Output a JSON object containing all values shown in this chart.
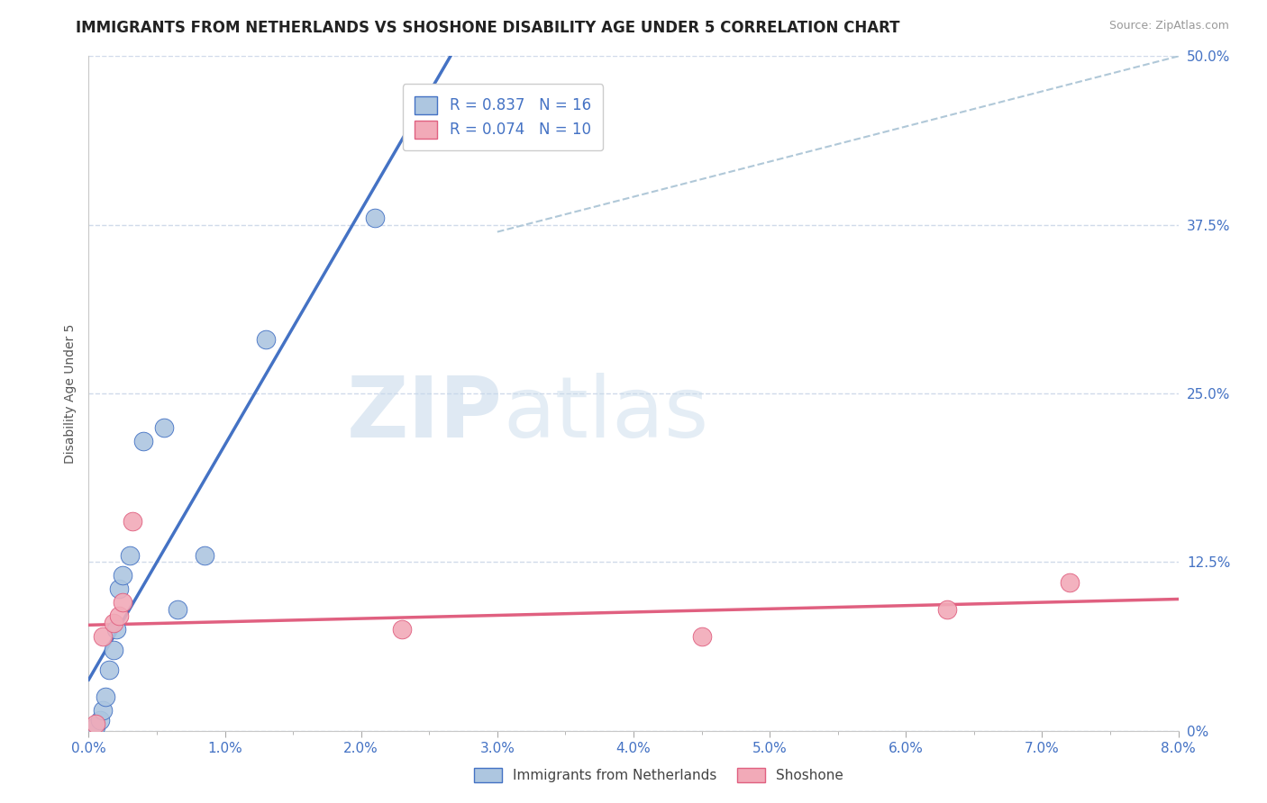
{
  "title": "IMMIGRANTS FROM NETHERLANDS VS SHOSHONE DISABILITY AGE UNDER 5 CORRELATION CHART",
  "source": "Source: ZipAtlas.com",
  "ylabel": "Disability Age Under 5",
  "x_tick_labels": [
    "0.0%",
    "",
    "1.0%",
    "",
    "2.0%",
    "",
    "3.0%",
    "",
    "4.0%",
    "",
    "5.0%",
    "",
    "6.0%",
    "",
    "7.0%",
    "",
    "8.0%"
  ],
  "x_tick_values": [
    0.0,
    0.5,
    1.0,
    1.5,
    2.0,
    2.5,
    3.0,
    3.5,
    4.0,
    4.5,
    5.0,
    5.5,
    6.0,
    6.5,
    7.0,
    7.5,
    8.0
  ],
  "x_tick_display_values": [
    0.0,
    1.0,
    2.0,
    3.0,
    4.0,
    5.0,
    6.0,
    7.0,
    8.0
  ],
  "x_tick_display_labels": [
    "0.0%",
    "1.0%",
    "2.0%",
    "3.0%",
    "4.0%",
    "5.0%",
    "6.0%",
    "7.0%",
    "8.0%"
  ],
  "y_tick_labels": [
    "0%",
    "12.5%",
    "25.0%",
    "37.5%",
    "50.0%"
  ],
  "y_tick_values": [
    0,
    12.5,
    25.0,
    37.5,
    50.0
  ],
  "xlim": [
    0.0,
    8.0
  ],
  "ylim": [
    0.0,
    50.0
  ],
  "netherlands_x": [
    0.05,
    0.08,
    0.1,
    0.12,
    0.15,
    0.18,
    0.2,
    0.22,
    0.25,
    0.3,
    0.4,
    0.55,
    0.65,
    0.85,
    1.3,
    2.1
  ],
  "netherlands_y": [
    0.3,
    0.8,
    1.5,
    2.5,
    4.5,
    6.0,
    7.5,
    10.5,
    11.5,
    13.0,
    21.5,
    22.5,
    9.0,
    13.0,
    29.0,
    38.0
  ],
  "shoshone_x": [
    0.05,
    0.1,
    0.18,
    0.22,
    0.25,
    0.32,
    2.3,
    4.5,
    6.3,
    7.2
  ],
  "shoshone_y": [
    0.5,
    7.0,
    8.0,
    8.5,
    9.5,
    15.5,
    7.5,
    7.0,
    9.0,
    11.0
  ],
  "netherlands_color": "#adc6e0",
  "shoshone_color": "#f2aab8",
  "netherlands_line_color": "#4472c4",
  "shoshone_line_color": "#e06080",
  "ref_line_color": "#b0c8d8",
  "background_color": "#ffffff",
  "grid_color": "#d0daea",
  "legend_R_netherlands": "R = 0.837",
  "legend_N_netherlands": "N = 16",
  "legend_R_shoshone": "R = 0.074",
  "legend_N_shoshone": "N = 10",
  "legend_label_netherlands": "Immigrants from Netherlands",
  "legend_label_shoshone": "Shoshone",
  "watermark_zip": "ZIP",
  "watermark_atlas": "atlas",
  "title_fontsize": 12,
  "axis_label_fontsize": 10,
  "tick_fontsize": 11,
  "legend_fontsize": 12
}
